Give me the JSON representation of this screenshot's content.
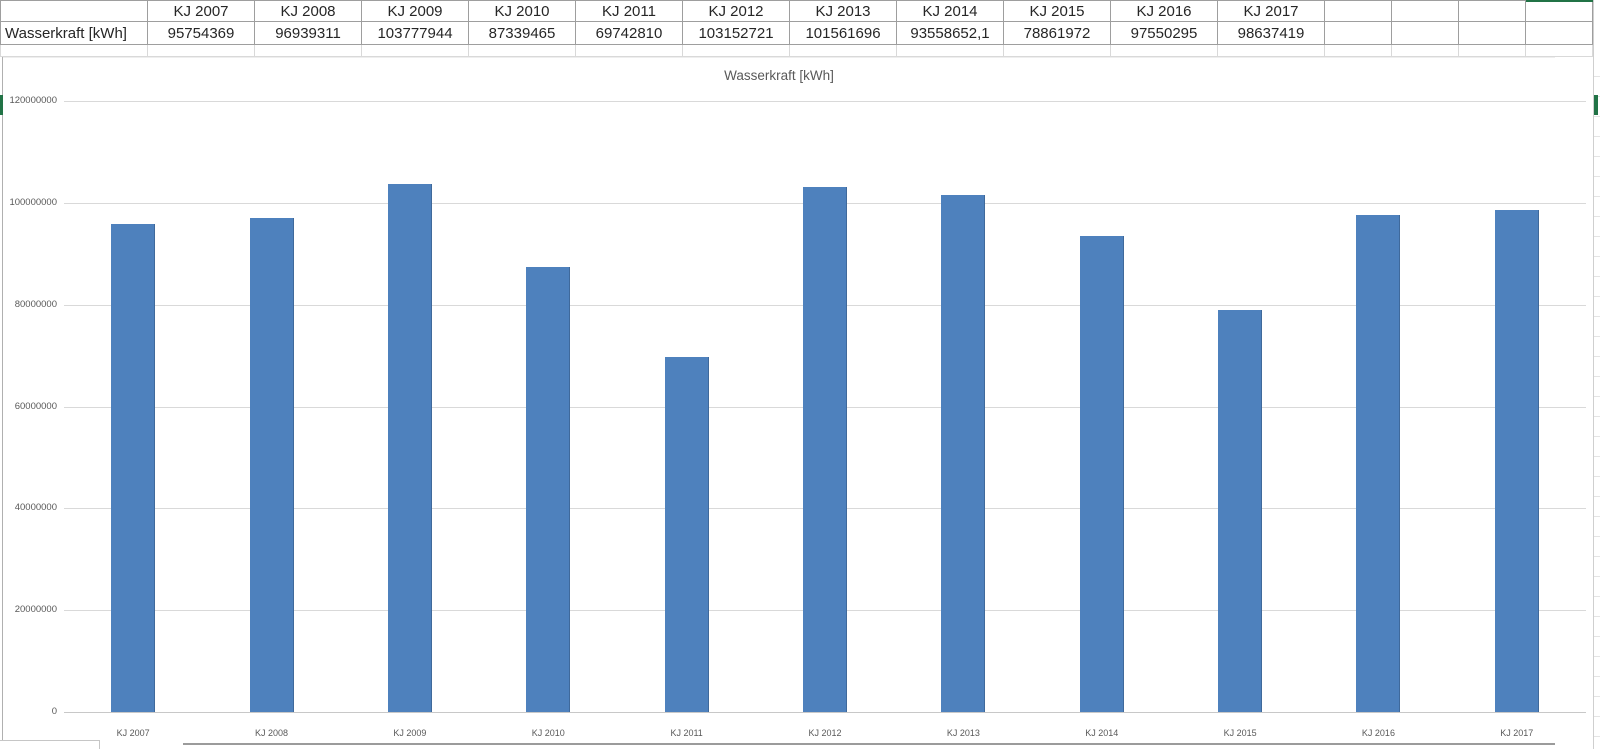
{
  "table": {
    "row_label": "Wasserkraft [kWh]",
    "headers": [
      "KJ 2007",
      "KJ 2008",
      "KJ 2009",
      "KJ 2010",
      "KJ 2011",
      "KJ 2012",
      "KJ 2013",
      "KJ 2014",
      "KJ 2015",
      "KJ 2016",
      "KJ 2017"
    ],
    "values": [
      "95754369",
      "96939311",
      "103777944",
      "87339465",
      "69742810",
      "103152721",
      "101561696",
      "93558652,1",
      "78861972",
      "97550295",
      "98637419"
    ]
  },
  "chart_data": {
    "type": "bar",
    "title": "Wasserkraft [kWh]",
    "categories": [
      "KJ 2007",
      "KJ 2008",
      "KJ 2009",
      "KJ 2010",
      "KJ 2011",
      "KJ 2012",
      "KJ 2013",
      "KJ 2014",
      "KJ 2015",
      "KJ 2016",
      "KJ 2017"
    ],
    "values": [
      95754369,
      96939311,
      103777944,
      87339465,
      69742810,
      103152721,
      101561696,
      93558652.1,
      78861972,
      97550295,
      98637419
    ],
    "ylabel": "",
    "xlabel": "",
    "ylim": [
      0,
      120000000
    ],
    "ytick_step": 20000000,
    "ytick_labels": [
      "0",
      "20000000",
      "40000000",
      "60000000",
      "80000000",
      "100000000",
      "120000000"
    ],
    "grid": true,
    "legend": "none",
    "bar_color": "#4E81BD"
  },
  "colors": {
    "bar": "#4E81BD",
    "selection_green": "#217346",
    "grid_line": "#D9D9D9",
    "muted_text": "#595959",
    "cell_border": "#9E9E9E"
  }
}
